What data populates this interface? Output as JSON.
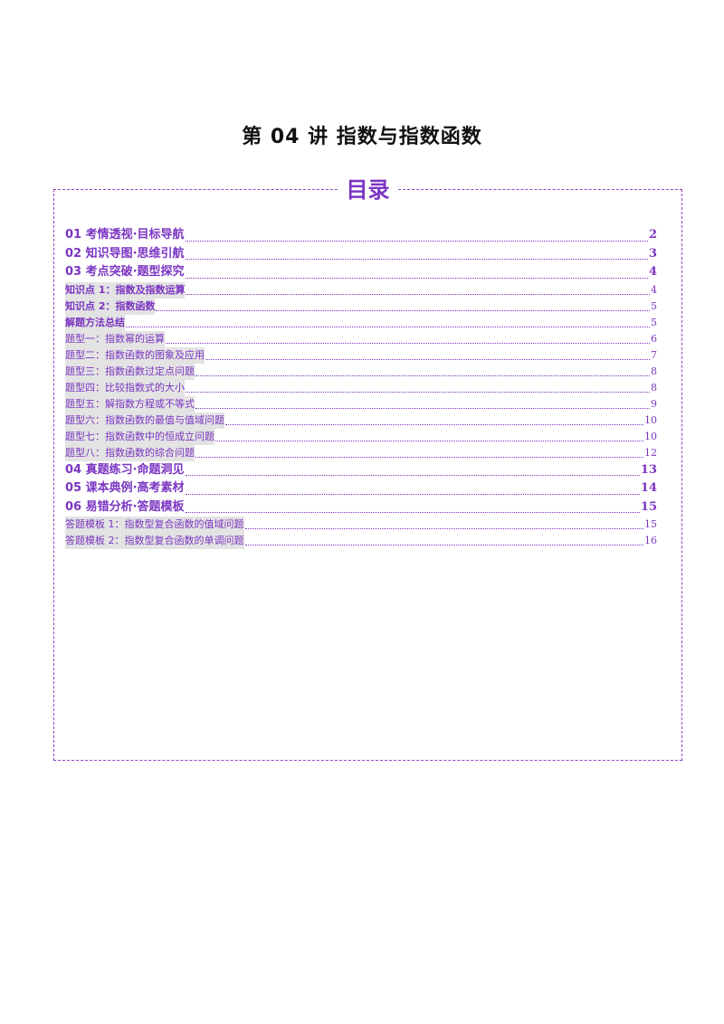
{
  "document": {
    "title": "第 04 讲  指数与指数函数"
  },
  "toc": {
    "heading": "目录",
    "entries": [
      {
        "level": 1,
        "label": "01 考情透视·目标导航",
        "page": "2"
      },
      {
        "level": 1,
        "label": "02 知识导图·思维引航",
        "page": "3"
      },
      {
        "level": 1,
        "label": "03 考点突破·题型探究",
        "page": "4"
      },
      {
        "level": 2,
        "label": "知识点 1：指数及指数运算",
        "page": "4"
      },
      {
        "level": 2,
        "label": "知识点 2：指数函数",
        "page": "5"
      },
      {
        "level": 2,
        "label": "解题方法总结",
        "page": "5"
      },
      {
        "level": 3,
        "label": "题型一：指数幂的运算",
        "page": "6"
      },
      {
        "level": 3,
        "label": "题型二：指数函数的图象及应用",
        "page": "7"
      },
      {
        "level": 3,
        "label": "题型三：指数函数过定点问题",
        "page": "8"
      },
      {
        "level": 3,
        "label": "题型四：比较指数式的大小",
        "page": "8"
      },
      {
        "level": 3,
        "label": "题型五：解指数方程或不等式",
        "page": "9"
      },
      {
        "level": 3,
        "label": "题型六：指数函数的最值与值域问题",
        "page": "10"
      },
      {
        "level": 3,
        "label": "题型七：指数函数中的恒成立问题",
        "page": "10"
      },
      {
        "level": 3,
        "label": "题型八：指数函数的综合问题",
        "page": "12"
      },
      {
        "level": 1,
        "label": "04 真题练习·命题洞见",
        "page": "13"
      },
      {
        "level": 1,
        "label": "05 课本典例·高考素材",
        "page": "14"
      },
      {
        "level": 1,
        "label": "06 易错分析·答题模板",
        "page": "15"
      },
      {
        "level": 3,
        "label": "答题模板 1：指数型复合函数的值域问题",
        "page": "15"
      },
      {
        "level": 3,
        "label": "答题模板 2：指数型复合函数的单调问题",
        "page": "16"
      }
    ]
  }
}
